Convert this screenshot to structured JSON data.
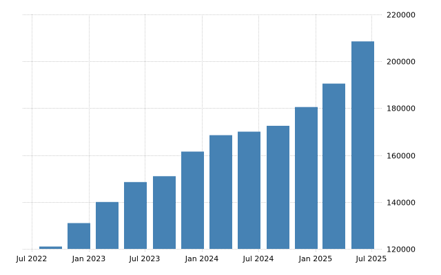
{
  "chart_data": {
    "type": "bar",
    "title": "",
    "xlabel": "",
    "ylabel": "",
    "categories": [
      "2022-Q3",
      "2022-Q4",
      "2023-Q1",
      "2023-Q2",
      "2023-Q3",
      "2023-Q4",
      "2024-Q1",
      "2024-Q2",
      "2024-Q3",
      "2024-Q4",
      "2025-Q1",
      "2025-Q2"
    ],
    "values": [
      121000,
      131000,
      140000,
      148500,
      151000,
      161500,
      168500,
      170000,
      172500,
      180500,
      190500,
      208500
    ],
    "ylim": [
      120000,
      220000
    ],
    "yticks": [
      120000,
      140000,
      160000,
      180000,
      200000,
      220000
    ],
    "ytick_labels": [
      "120000",
      "140000",
      "160000",
      "180000",
      "200000",
      "220000"
    ],
    "xtick_labels": [
      "Jul 2022",
      "Jan 2023",
      "Jul 2023",
      "Jan 2024",
      "Jul 2024",
      "Jan 2025",
      "Jul 2025"
    ],
    "grid": true,
    "legend": null,
    "y_axis_position": "right",
    "bar_color": "#4682B4",
    "grid_color": "#cccccc"
  }
}
